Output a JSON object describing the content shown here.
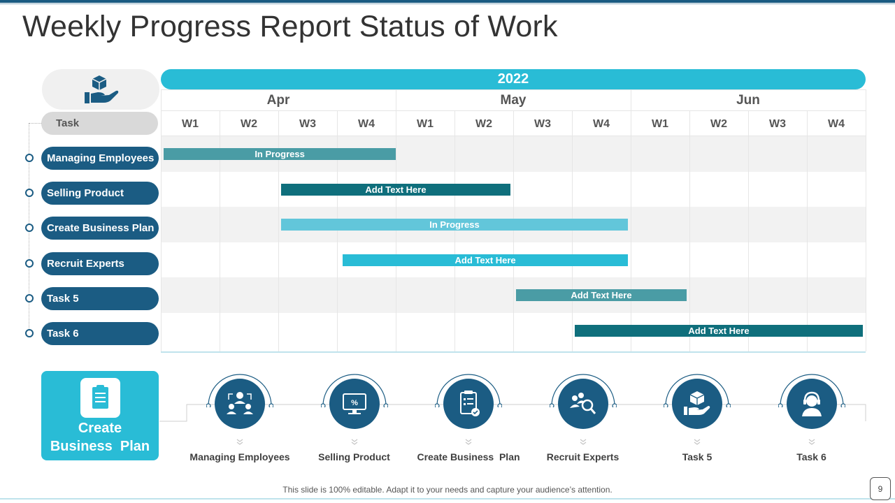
{
  "title": "Weekly Progress Report Status of Work",
  "gantt": {
    "year": "2022",
    "task_header": "Task",
    "months": [
      "Apr",
      "May",
      "Jun"
    ],
    "weeks": [
      "W1",
      "W2",
      "W3",
      "W4",
      "W1",
      "W2",
      "W3",
      "W4",
      "W1",
      "W2",
      "W3",
      "W4"
    ],
    "tasks": [
      "Managing Employees",
      "Selling Product",
      "Create Business Plan",
      "Recruit Experts",
      "Task 5",
      "Task 6"
    ],
    "bars": [
      {
        "label": "In Progress",
        "start_week": 1.05,
        "end_week": 5.0,
        "color": "#4a9ca5"
      },
      {
        "label": "Add Text Here",
        "start_week": 3.05,
        "end_week": 6.95,
        "color": "#0f6f7c"
      },
      {
        "label": "In Progress",
        "start_week": 3.05,
        "end_week": 8.95,
        "color": "#62c6da"
      },
      {
        "label": "Add Text Here",
        "start_week": 4.1,
        "end_week": 8.95,
        "color": "#29bcd6"
      },
      {
        "label": "Add Text Here",
        "start_week": 7.05,
        "end_week": 9.95,
        "color": "#4a9ca5"
      },
      {
        "label": "Add Text Here",
        "start_week": 8.05,
        "end_week": 12.95,
        "color": "#0f6f7c"
      }
    ]
  },
  "highlight": {
    "label": "Create Business Plan",
    "line1": "Create",
    "line2": "Business  Plan",
    "icon": "clipboard-icon"
  },
  "steps": [
    {
      "label": "Managing Employees",
      "icon": "team-meeting-icon"
    },
    {
      "label": "Selling Product",
      "icon": "monitor-discount-icon"
    },
    {
      "label": "Create Business  Plan",
      "icon": "clipboard-check-icon"
    },
    {
      "label": "Recruit Experts",
      "icon": "people-search-icon"
    },
    {
      "label": "Task 5",
      "icon": "box-hand-icon"
    },
    {
      "label": "Task 6",
      "icon": "support-agent-icon"
    }
  ],
  "footer": "This slide is 100% editable. Adapt it to your needs and capture your audience’s attention.",
  "page_number": "9",
  "colors": {
    "dark_blue": "#1b5c83",
    "cyan": "#29bcd6",
    "teal": "#0f6f7c"
  }
}
